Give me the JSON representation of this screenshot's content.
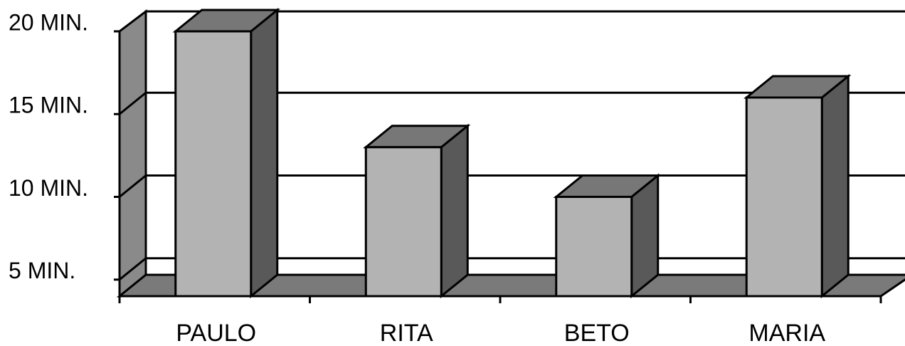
{
  "chart_data": {
    "type": "bar",
    "style": "3d",
    "categories": [
      "PAULO",
      "RITA",
      "BETO",
      "MARIA"
    ],
    "values": [
      20,
      13,
      10,
      16
    ],
    "ylim": [
      4,
      20
    ],
    "yticks": [
      5,
      10,
      15,
      20
    ],
    "ytick_labels": [
      "5 MIN.",
      "10 MIN.",
      "15 MIN.",
      "20 MIN."
    ],
    "grid": true,
    "legend": "none",
    "colors": {
      "bar_front": "#b3b3b3",
      "bar_top": "#777777",
      "bar_side": "#595959",
      "back_wall": "#ffffff",
      "side_wall": "#8a8a8a",
      "floor": "#7a7a7a",
      "outline": "#000000"
    }
  }
}
